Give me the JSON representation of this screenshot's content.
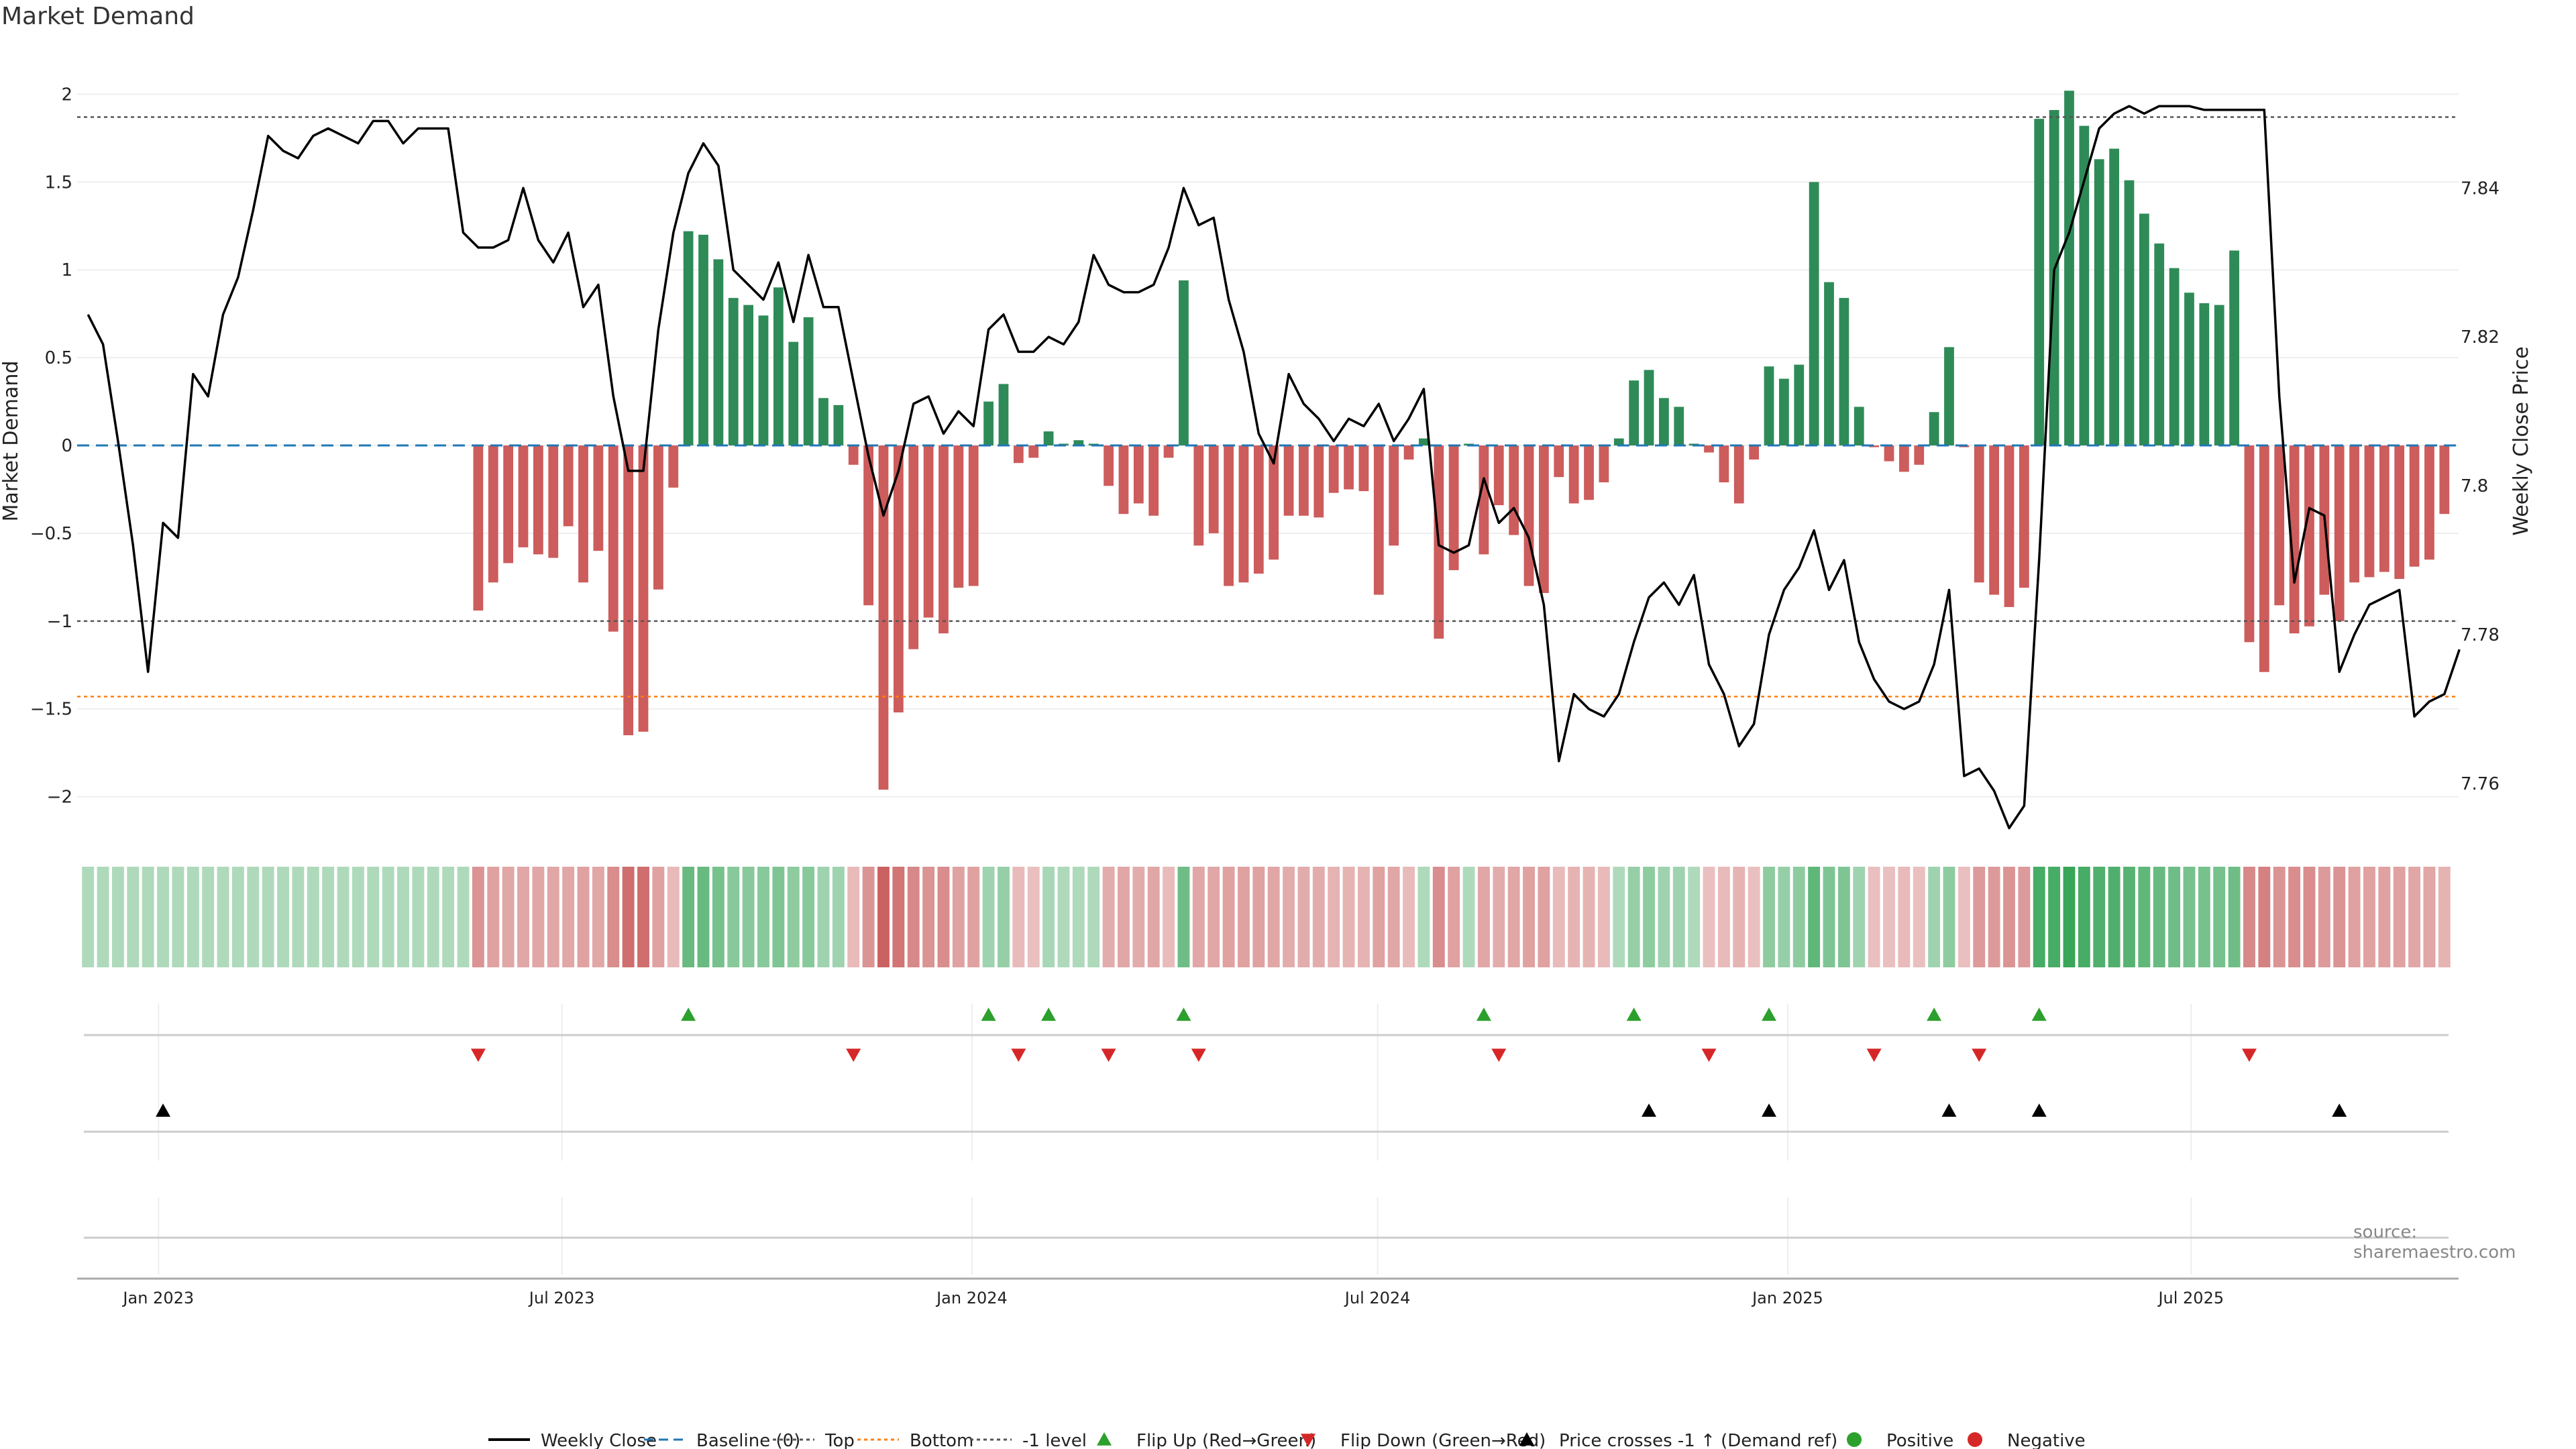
{
  "title": "Market Demand",
  "source": "source: sharemaestro.com",
  "colors": {
    "positive": "#2e8b57",
    "negative": "#cd5c5c",
    "price": "#000000",
    "baseline": "#1f77b4",
    "top": "#555555",
    "bottom": "#ff7f0e",
    "minus1": "#555555",
    "flip_up": "#2ca02c",
    "flip_down": "#d62728",
    "cross": "#000000"
  },
  "chart_data": {
    "type": "bar",
    "title": "Market Demand",
    "ylabel": "Market Demand",
    "y2label": "Weekly Close Price",
    "ylim": [
      -2.2,
      2.25
    ],
    "y2lim": [
      7.7535,
      7.8585
    ],
    "yticks": [
      -2,
      -1.5,
      -1,
      -0.5,
      0,
      0.5,
      1,
      1.5,
      2
    ],
    "ytick_labels": [
      "−2",
      "−1.5",
      "−1",
      "−0.5",
      "0",
      "0.5",
      "1",
      "1.5",
      "2"
    ],
    "y2ticks": [
      7.76,
      7.78,
      7.8,
      7.82,
      7.84
    ],
    "y2tick_labels": [
      "7.76",
      "7.78",
      "7.8",
      "7.82",
      "7.84"
    ],
    "x_start_date": "2022-11-27",
    "x_end_date": "2025-10-26",
    "xticks": [
      {
        "date": "2023-01-01",
        "label": "Jan 2023"
      },
      {
        "date": "2023-07-01",
        "label": "Jul 2023"
      },
      {
        "date": "2024-01-01",
        "label": "Jan 2024"
      },
      {
        "date": "2024-07-01",
        "label": "Jul 2024"
      },
      {
        "date": "2025-01-01",
        "label": "Jan 2025"
      },
      {
        "date": "2025-07-01",
        "label": "Jul 2025"
      }
    ],
    "reference_lines": {
      "top": 1.87,
      "bottom": -1.43,
      "minus1": -1.0,
      "baseline": 0
    },
    "demand": [
      0,
      0,
      0,
      0,
      0,
      0,
      0,
      0,
      0,
      0,
      0,
      0,
      0,
      0,
      0,
      0,
      0,
      0,
      0,
      0,
      0,
      0,
      0,
      0,
      0,
      0,
      -0.94,
      -0.78,
      -0.67,
      -0.58,
      -0.62,
      -0.64,
      -0.46,
      -0.78,
      -0.6,
      -1.06,
      -1.65,
      -1.63,
      -0.82,
      -0.24,
      1.22,
      1.2,
      1.06,
      0.84,
      0.8,
      0.74,
      0.9,
      0.59,
      0.73,
      0.27,
      0.23,
      -0.11,
      -0.91,
      -1.96,
      -1.52,
      -1.16,
      -0.98,
      -1.07,
      -0.81,
      -0.8,
      0.25,
      0.35,
      -0.1,
      -0.07,
      0.08,
      0.01,
      0.03,
      0.01,
      -0.23,
      -0.39,
      -0.33,
      -0.4,
      -0.07,
      0.94,
      -0.57,
      -0.5,
      -0.8,
      -0.78,
      -0.73,
      -0.65,
      -0.4,
      -0.4,
      -0.41,
      -0.27,
      -0.25,
      -0.26,
      -0.85,
      -0.57,
      -0.08,
      0.04,
      -1.1,
      -0.71,
      0.01,
      -0.62,
      -0.34,
      -0.51,
      -0.8,
      -0.84,
      -0.18,
      -0.33,
      -0.31,
      -0.21,
      0.04,
      0.37,
      0.43,
      0.27,
      0.22,
      0.01,
      -0.04,
      -0.21,
      -0.33,
      -0.08,
      0.45,
      0.38,
      0.46,
      1.5,
      0.93,
      0.84,
      0.22,
      -0.01,
      -0.09,
      -0.15,
      -0.11,
      0.19,
      0.56,
      -0.01,
      -0.78,
      -0.85,
      -0.92,
      -0.81,
      1.86,
      1.91,
      2.02,
      1.82,
      1.63,
      1.69,
      1.51,
      1.32,
      1.15,
      1.01,
      0.87,
      0.81,
      0.8,
      1.11,
      -1.12,
      -1.29,
      -0.91,
      -1.07,
      -1.03,
      -0.85,
      -1.0,
      -0.78,
      -0.75,
      -0.72,
      -0.76,
      -0.69,
      -0.65,
      -0.39
    ],
    "demand_strength": [
      0.25,
      0.25,
      0.25,
      0.25,
      0.25,
      0.25,
      0.25,
      0.25,
      0.25,
      0.25,
      0.25,
      0.25,
      0.25,
      0.25,
      0.25,
      0.25,
      0.25,
      0.25,
      0.25,
      0.25,
      0.25,
      0.25,
      0.25,
      0.25,
      0.25,
      0.25,
      0.6,
      0.5,
      0.45,
      0.45,
      0.45,
      0.45,
      0.45,
      0.5,
      0.45,
      0.65,
      0.9,
      0.9,
      0.5,
      0.3,
      0.7,
      0.7,
      0.6,
      0.5,
      0.5,
      0.5,
      0.55,
      0.45,
      0.5,
      0.35,
      0.35,
      0.3,
      0.6,
      1.0,
      0.85,
      0.7,
      0.6,
      0.65,
      0.5,
      0.5,
      0.35,
      0.4,
      0.3,
      0.25,
      0.3,
      0.25,
      0.25,
      0.25,
      0.4,
      0.45,
      0.4,
      0.45,
      0.3,
      0.65,
      0.45,
      0.45,
      0.5,
      0.5,
      0.5,
      0.45,
      0.4,
      0.4,
      0.4,
      0.35,
      0.35,
      0.35,
      0.5,
      0.45,
      0.3,
      0.25,
      0.65,
      0.5,
      0.25,
      0.45,
      0.4,
      0.45,
      0.5,
      0.5,
      0.3,
      0.35,
      0.35,
      0.3,
      0.25,
      0.4,
      0.45,
      0.35,
      0.35,
      0.25,
      0.25,
      0.3,
      0.35,
      0.25,
      0.45,
      0.4,
      0.45,
      0.75,
      0.55,
      0.55,
      0.35,
      0.25,
      0.25,
      0.3,
      0.25,
      0.35,
      0.45,
      0.25,
      0.55,
      0.55,
      0.6,
      0.55,
      0.9,
      0.9,
      1.0,
      0.9,
      0.85,
      0.85,
      0.8,
      0.75,
      0.7,
      0.65,
      0.6,
      0.6,
      0.6,
      0.65,
      0.7,
      0.75,
      0.6,
      0.65,
      0.65,
      0.55,
      0.6,
      0.5,
      0.5,
      0.5,
      0.5,
      0.45,
      0.45,
      0.35
    ],
    "weekly_close": [
      7.823,
      7.819,
      7.806,
      7.792,
      7.775,
      7.795,
      7.793,
      7.815,
      7.812,
      7.823,
      7.828,
      7.837,
      7.847,
      7.845,
      7.844,
      7.847,
      7.848,
      7.847,
      7.846,
      7.849,
      7.849,
      7.846,
      7.848,
      7.848,
      7.848,
      7.834,
      7.832,
      7.832,
      7.833,
      7.84,
      7.833,
      7.83,
      7.834,
      7.824,
      7.827,
      7.812,
      7.802,
      7.802,
      7.821,
      7.834,
      7.842,
      7.846,
      7.843,
      7.829,
      7.827,
      7.825,
      7.83,
      7.822,
      7.831,
      7.824,
      7.824,
      7.814,
      7.804,
      7.796,
      7.802,
      7.811,
      7.812,
      7.807,
      7.81,
      7.808,
      7.821,
      7.823,
      7.818,
      7.818,
      7.82,
      7.819,
      7.822,
      7.831,
      7.827,
      7.826,
      7.826,
      7.827,
      7.832,
      7.84,
      7.835,
      7.836,
      7.825,
      7.818,
      7.807,
      7.803,
      7.815,
      7.811,
      7.809,
      7.806,
      7.809,
      7.808,
      7.811,
      7.806,
      7.809,
      7.813,
      7.792,
      7.791,
      7.792,
      7.801,
      7.795,
      7.797,
      7.793,
      7.784,
      7.763,
      7.772,
      7.77,
      7.769,
      7.772,
      7.779,
      7.785,
      7.787,
      7.784,
      7.788,
      7.776,
      7.772,
      7.765,
      7.768,
      7.78,
      7.786,
      7.789,
      7.794,
      7.786,
      7.79,
      7.779,
      7.774,
      7.771,
      7.77,
      7.771,
      7.776,
      7.786,
      7.761,
      7.762,
      7.759,
      7.754,
      7.757,
      7.79,
      7.829,
      7.834,
      7.841,
      7.848,
      7.85,
      7.851,
      7.85,
      7.851,
      7.851,
      7.851,
      7.8505,
      7.8505,
      7.8505,
      7.8505,
      7.8505,
      7.812,
      7.787,
      7.797,
      7.796,
      7.775,
      7.78,
      7.784,
      7.785,
      7.786,
      7.769,
      7.771,
      7.772,
      7.778
    ],
    "series": [
      {
        "name": "Weekly Close",
        "type": "line"
      },
      {
        "name": "Market Demand",
        "type": "bar"
      }
    ],
    "signals": {
      "flip_up_bars": [
        40,
        60,
        64,
        73,
        93,
        103,
        112,
        123,
        130
      ],
      "flip_down_bars": [
        26,
        51,
        62,
        68,
        74,
        94,
        108,
        119,
        126,
        144
      ],
      "price_cross_bars": [
        5,
        104,
        112,
        124,
        130,
        150
      ]
    },
    "legend": [
      {
        "label": "Weekly Close",
        "marker": "line",
        "key": "price"
      },
      {
        "label": "Baseline (0)",
        "marker": "dashed",
        "key": "baseline"
      },
      {
        "label": "Top",
        "marker": "dotted",
        "key": "top"
      },
      {
        "label": "Bottom",
        "marker": "dotted",
        "key": "bottom"
      },
      {
        "label": "-1 level",
        "marker": "dotted",
        "key": "minus1"
      },
      {
        "label": "Flip Up (Red→Green)",
        "marker": "triangle-up",
        "key": "flip_up"
      },
      {
        "label": "Flip Down (Green→Red)",
        "marker": "triangle-down",
        "key": "flip_down"
      },
      {
        "label": "Price crosses -1 ↑ (Demand ref)",
        "marker": "triangle-up",
        "key": "cross"
      },
      {
        "label": "Positive",
        "marker": "circle",
        "key": "flip_up"
      },
      {
        "label": "Negative",
        "marker": "circle",
        "key": "flip_down"
      }
    ]
  }
}
